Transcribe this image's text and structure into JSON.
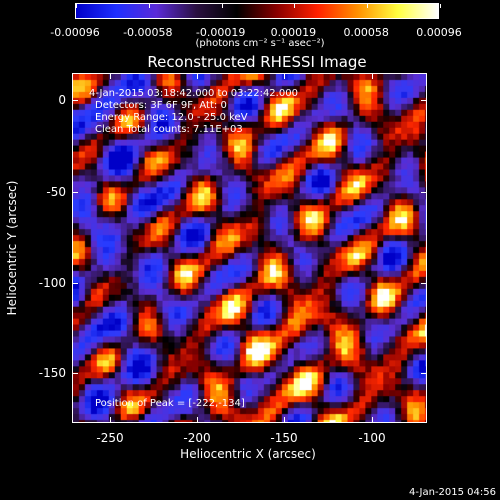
{
  "colorbar": {
    "tick_labels": [
      "-0.00096",
      "-0.00058",
      "-0.00019",
      "0.00019",
      "0.00058",
      "0.00096"
    ],
    "units": "(photons cm⁻² s⁻¹ asec⁻²)",
    "colors": [
      "#0000c8",
      "#1f2fff",
      "#5a2bd8",
      "#2a1040",
      "#000000",
      "#8a0000",
      "#ff2000",
      "#ff9000",
      "#ffff40",
      "#ffffff"
    ]
  },
  "title": "Reconstructed RHESSI Image",
  "info": {
    "time_range": "4-Jan-2015 03:18:42.000 to 03:22:42.000",
    "detectors": "Detectors: 3F 6F 9F, Att: 0",
    "energy": "Energy Range: 12.0 - 25.0 keV",
    "clean": "Clean    Total counts: 7.11E+03",
    "peak": "Position of Peak = [-222,-134]"
  },
  "axes": {
    "xlabel": "Heliocentric X (arcsec)",
    "ylabel": "Heliocentric Y (arcsec)",
    "xticks": [
      "-250",
      "-200",
      "-150",
      "-100"
    ],
    "yticks": [
      "0",
      "-50",
      "-100",
      "-150"
    ]
  },
  "footer": {
    "date": "4-Jan-2015 04:56"
  },
  "chart_data": {
    "type": "heatmap",
    "title": "Reconstructed RHESSI Image",
    "xlabel": "Heliocentric X (arcsec)",
    "ylabel": "Heliocentric Y (arcsec)",
    "xlim": [
      -265,
      -75
    ],
    "ylim": [
      -177,
      10
    ],
    "color_range": [
      -0.00096,
      0.00096
    ],
    "peak": [
      -222,
      -134
    ]
  }
}
